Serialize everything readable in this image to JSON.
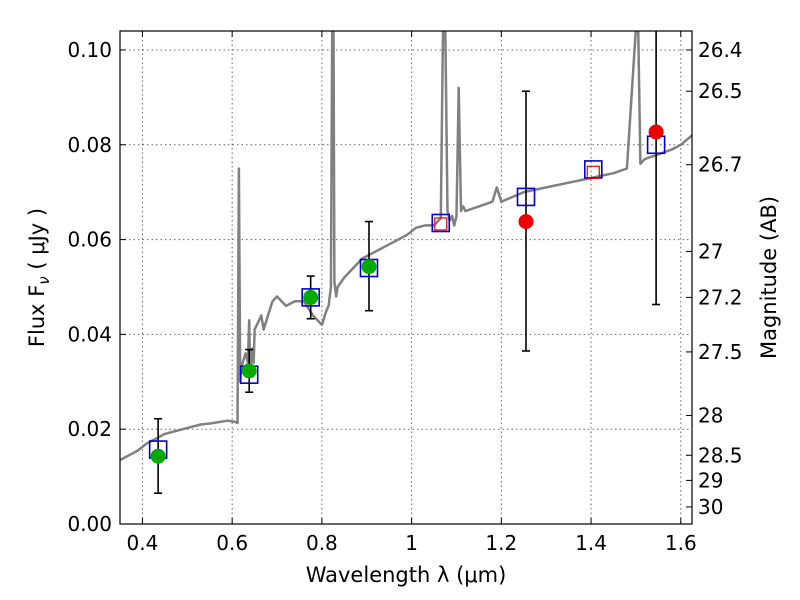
{
  "chart_data": {
    "type": "scatter",
    "xlabel": "Wavelength  λ (μm)",
    "ylabel": "Flux  F",
    "ylabel_sub": "ν",
    "ylabel_unit": "  ( μJy )",
    "y2label": "Magnitude (AB)",
    "xlim": [
      0.35,
      1.625
    ],
    "ylim": [
      0.0,
      0.104
    ],
    "grid": true,
    "x_ticks": [
      {
        "value": 0.4,
        "label": "0.4"
      },
      {
        "value": 0.6,
        "label": "0.6"
      },
      {
        "value": 0.8,
        "label": "0.8"
      },
      {
        "value": 1.0,
        "label": "1"
      },
      {
        "value": 1.2,
        "label": "1.2"
      },
      {
        "value": 1.4,
        "label": "1.4"
      },
      {
        "value": 1.6,
        "label": "1.6"
      }
    ],
    "y_ticks": [
      {
        "value": 0.0,
        "label": "0.00"
      },
      {
        "value": 0.02,
        "label": "0.02"
      },
      {
        "value": 0.04,
        "label": "0.04"
      },
      {
        "value": 0.06,
        "label": "0.06"
      },
      {
        "value": 0.08,
        "label": "0.08"
      },
      {
        "value": 0.1,
        "label": "0.10"
      }
    ],
    "y2_ticks": [
      {
        "flux": 0.1,
        "label": "26.4"
      },
      {
        "flux": 0.0913,
        "label": "26.5"
      },
      {
        "flux": 0.0758,
        "label": "26.7"
      },
      {
        "flux": 0.0575,
        "label": "27"
      },
      {
        "flux": 0.0478,
        "label": "27.2"
      },
      {
        "flux": 0.0363,
        "label": "27.5"
      },
      {
        "flux": 0.0229,
        "label": "28"
      },
      {
        "flux": 0.0145,
        "label": "28.5"
      },
      {
        "flux": 0.0092,
        "label": "29"
      },
      {
        "flux": 0.0036,
        "label": "30"
      }
    ],
    "series": [
      {
        "kind": "model-spectrum",
        "color": "#808080",
        "x": [
          0.35,
          0.37,
          0.39,
          0.41,
          0.43,
          0.45,
          0.47,
          0.49,
          0.51,
          0.53,
          0.55,
          0.57,
          0.59,
          0.605,
          0.612,
          0.615,
          0.618,
          0.62,
          0.63,
          0.635,
          0.638,
          0.64,
          0.645,
          0.648,
          0.65,
          0.66,
          0.665,
          0.67,
          0.68,
          0.69,
          0.7,
          0.72,
          0.74,
          0.76,
          0.78,
          0.8,
          0.81,
          0.815,
          0.82,
          0.823,
          0.826,
          0.828,
          0.832,
          0.835,
          0.85,
          0.87,
          0.89,
          0.91,
          0.93,
          0.95,
          0.97,
          0.99,
          1.01,
          1.03,
          1.05,
          1.065,
          1.07,
          1.075,
          1.08,
          1.085,
          1.09,
          1.095,
          1.1,
          1.105,
          1.11,
          1.115,
          1.12,
          1.15,
          1.18,
          1.19,
          1.2,
          1.25,
          1.3,
          1.35,
          1.4,
          1.45,
          1.48,
          1.5,
          1.505,
          1.51,
          1.52,
          1.55,
          1.58,
          1.6,
          1.625
        ],
        "y": [
          0.0135,
          0.0145,
          0.0155,
          0.017,
          0.018,
          0.019,
          0.0195,
          0.02,
          0.0205,
          0.021,
          0.0212,
          0.0215,
          0.0218,
          0.0216,
          0.0213,
          0.075,
          0.03,
          0.033,
          0.036,
          0.034,
          0.043,
          0.032,
          0.037,
          0.034,
          0.041,
          0.043,
          0.044,
          0.041,
          0.044,
          0.047,
          0.048,
          0.046,
          0.047,
          0.047,
          0.044,
          0.042,
          0.045,
          0.046,
          0.05,
          0.104,
          0.104,
          0.051,
          0.048,
          0.05,
          0.052,
          0.054,
          0.056,
          0.057,
          0.058,
          0.059,
          0.06,
          0.061,
          0.0625,
          0.063,
          0.063,
          0.0645,
          0.1045,
          0.1045,
          0.066,
          0.064,
          0.065,
          0.063,
          0.065,
          0.092,
          0.066,
          0.067,
          0.066,
          0.067,
          0.068,
          0.071,
          0.068,
          0.07,
          0.071,
          0.072,
          0.073,
          0.074,
          0.075,
          0.1045,
          0.1045,
          0.076,
          0.077,
          0.078,
          0.079,
          0.08,
          0.082
        ]
      },
      {
        "kind": "model-photometry",
        "marker": "open-square",
        "color": "#0000cc",
        "x": [
          0.435,
          0.638,
          0.775,
          0.905,
          1.065,
          1.255,
          1.405,
          1.545
        ],
        "y": [
          0.0157,
          0.0315,
          0.0478,
          0.054,
          0.0635,
          0.069,
          0.0748,
          0.08
        ]
      },
      {
        "kind": "observed-detections",
        "marker": "filled-circle",
        "color": "#00aa00",
        "x": [
          0.435,
          0.638,
          0.775,
          0.905
        ],
        "y": [
          0.0143,
          0.0323,
          0.0478,
          0.0543
        ],
        "yerr_low": [
          0.0065,
          0.0278,
          0.0433,
          0.045
        ],
        "yerr_high": [
          0.0222,
          0.0368,
          0.0523,
          0.0638
        ]
      },
      {
        "kind": "observed-upper-limits",
        "marker": "filled-circle",
        "color": "#ee0000",
        "x": [
          1.255,
          1.545
        ],
        "y": [
          0.0638,
          0.0827
        ],
        "yerr_low": [
          0.0365,
          0.0463
        ],
        "yerr_high": [
          0.0913,
          0.1045
        ]
      },
      {
        "kind": "observed-non-detections",
        "marker": "open-square",
        "color": "#ee0000",
        "x": [
          1.065,
          1.405
        ],
        "y": [
          0.0633,
          0.0742
        ]
      }
    ]
  }
}
